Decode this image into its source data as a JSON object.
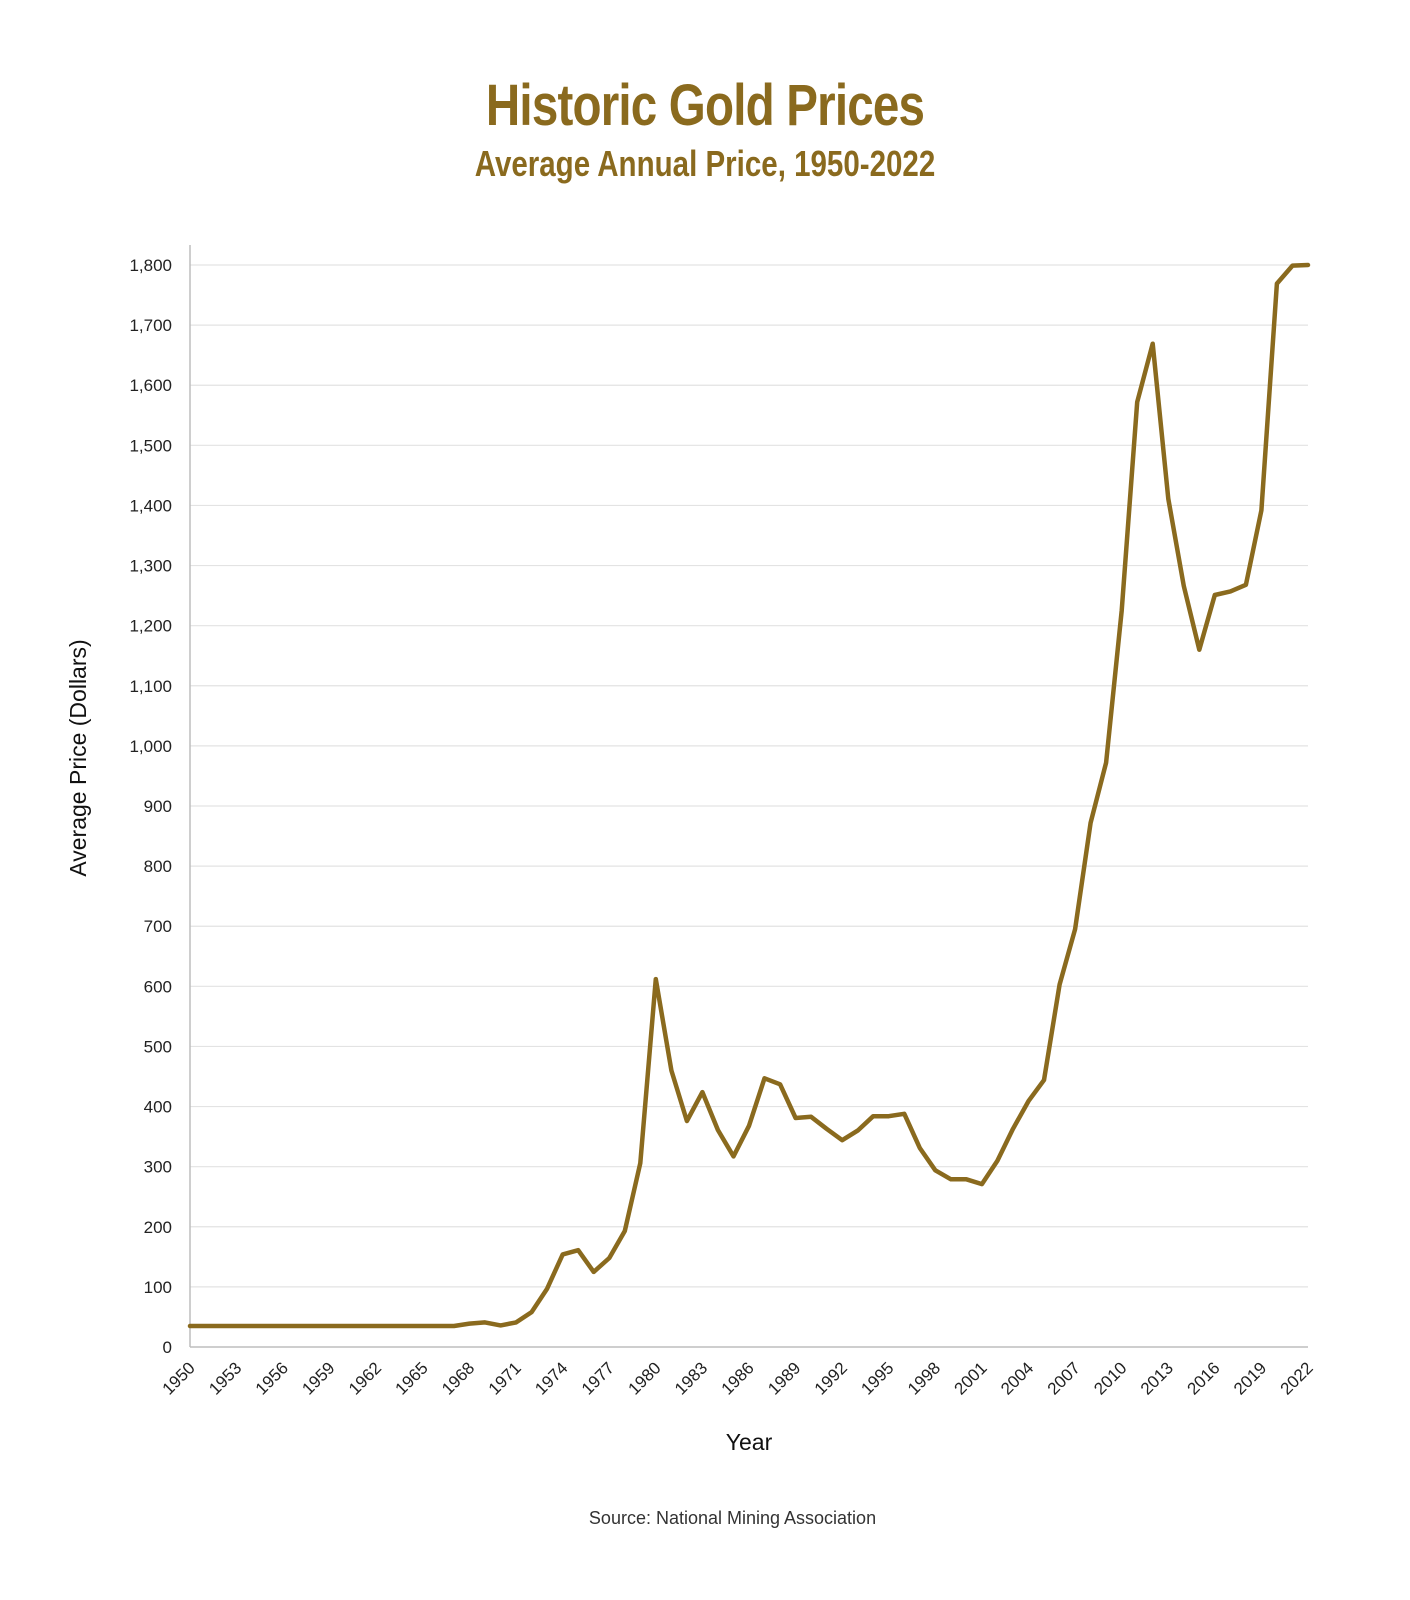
{
  "chart_data": {
    "type": "line",
    "title": "Historic Gold Prices",
    "subtitle": "Average Annual Price, 1950-2022",
    "xlabel": "Year",
    "ylabel": "Average Price (Dollars)",
    "source": "Source: National Mining Association",
    "xlim": [
      1950,
      2022
    ],
    "ylim": [
      0,
      1800
    ],
    "x_ticks": [
      "1950",
      "1953",
      "1956",
      "1959",
      "1962",
      "1965",
      "1968",
      "1971",
      "1974",
      "1977",
      "1980",
      "1983",
      "1986",
      "1989",
      "1992",
      "1995",
      "1998",
      "2001",
      "2004",
      "2007",
      "2010",
      "2013",
      "2016",
      "2019",
      "2022"
    ],
    "y_ticks": [
      "0",
      "100",
      "200",
      "300",
      "400",
      "500",
      "600",
      "700",
      "800",
      "900",
      "1,000",
      "1,100",
      "1,200",
      "1,300",
      "1,400",
      "1,500",
      "1,600",
      "1,700",
      "1,800"
    ],
    "grid": true,
    "line_color": "#8a6a1e",
    "series": [
      {
        "x": [
          1950,
          1951,
          1952,
          1953,
          1954,
          1955,
          1956,
          1957,
          1958,
          1959,
          1960,
          1961,
          1962,
          1963,
          1964,
          1965,
          1966,
          1967,
          1968,
          1969,
          1970,
          1971,
          1972,
          1973,
          1974,
          1975,
          1976,
          1977,
          1978,
          1979,
          1980,
          1981,
          1982,
          1983,
          1984,
          1985,
          1986,
          1987,
          1988,
          1989,
          1990,
          1991,
          1992,
          1993,
          1994,
          1995,
          1996,
          1997,
          1998,
          1999,
          2000,
          2001,
          2002,
          2003,
          2004,
          2005,
          2006,
          2007,
          2008,
          2009,
          2010,
          2011,
          2012,
          2013,
          2014,
          2015,
          2016,
          2017,
          2018,
          2019,
          2020,
          2021,
          2022
        ],
        "y": [
          35,
          35,
          35,
          35,
          35,
          35,
          35,
          35,
          35,
          35,
          35,
          35,
          35,
          35,
          35,
          35,
          35,
          35,
          39,
          41,
          36,
          41,
          58,
          97,
          154,
          161,
          125,
          148,
          193,
          306,
          612,
          460,
          376,
          424,
          361,
          317,
          368,
          447,
          437,
          381,
          383,
          363,
          344,
          360,
          384,
          384,
          388,
          331,
          294,
          279,
          279,
          271,
          310,
          363,
          409,
          444,
          603,
          695,
          872,
          972,
          1225,
          1572,
          1669,
          1411,
          1266,
          1160,
          1251,
          1257,
          1268,
          1392,
          1769,
          1799,
          1800
        ]
      }
    ]
  }
}
